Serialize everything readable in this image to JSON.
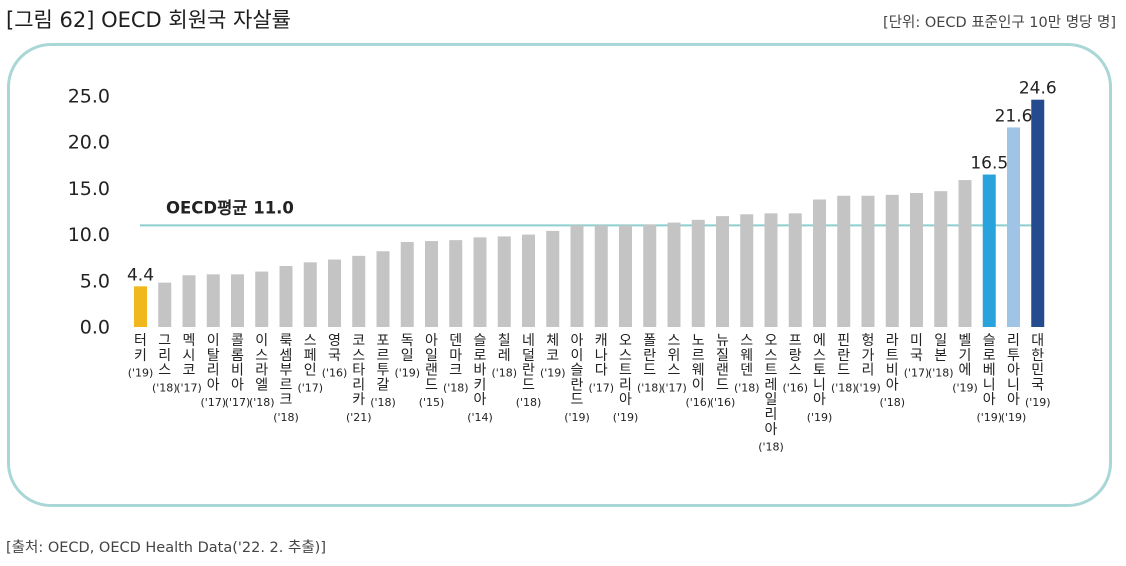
{
  "figure": {
    "title": "[그림 62] OECD 회원국 자살률",
    "unit": "[단위: OECD 표준인구 10만 명당 명]",
    "source": "[출처: OECD, OECD Health Data('22. 2. 추출)]"
  },
  "colors": {
    "default_bar": "#c4c4c4",
    "turkey_bar": "#f0b81d",
    "slovenia_bar": "#2aa3dc",
    "lithuania_bar": "#9fc4e6",
    "korea_bar": "#234b8e",
    "average_line": "#8dcece",
    "frame_border": "#a9d6d6"
  },
  "chart_data": {
    "type": "bar",
    "ylim": [
      0,
      25
    ],
    "yticks": [
      "0.0",
      "5.0",
      "10.0",
      "15.0",
      "20.0",
      "25.0"
    ],
    "grid": false,
    "reference_line": {
      "label": "OECD평균 11.0",
      "value": 11.0
    },
    "categories": [
      {
        "name": "터키",
        "year": "('19)",
        "value": 4.4,
        "label": "4.4",
        "color": "#f0b81d"
      },
      {
        "name": "그리스",
        "year": "('18)",
        "value": 4.8
      },
      {
        "name": "멕시코",
        "year": "('17)",
        "value": 5.6
      },
      {
        "name": "이탈리아",
        "year": "('17)",
        "value": 5.7
      },
      {
        "name": "콜롬비아",
        "year": "('17)",
        "value": 5.7
      },
      {
        "name": "이스라엘",
        "year": "('18)",
        "value": 6.0
      },
      {
        "name": "룩셈부르크",
        "year": "('18)",
        "value": 6.6
      },
      {
        "name": "스페인",
        "year": "('17)",
        "value": 7.0
      },
      {
        "name": "영국",
        "year": "('16)",
        "value": 7.3
      },
      {
        "name": "코스타리카",
        "year": "('21)",
        "value": 7.7
      },
      {
        "name": "포르투갈",
        "year": "('18)",
        "value": 8.2
      },
      {
        "name": "독일",
        "year": "('19)",
        "value": 9.2
      },
      {
        "name": "아일랜드",
        "year": "('15)",
        "value": 9.3
      },
      {
        "name": "덴마크",
        "year": "('18)",
        "value": 9.4
      },
      {
        "name": "슬로바키아",
        "year": "('14)",
        "value": 9.7
      },
      {
        "name": "칠레",
        "year": "('18)",
        "value": 9.8
      },
      {
        "name": "네덜란드",
        "year": "('18)",
        "value": 10.0
      },
      {
        "name": "체코",
        "year": "('19)",
        "value": 10.4
      },
      {
        "name": "아이슬란드",
        "year": "('19)",
        "value": 11.0
      },
      {
        "name": "캐나다",
        "year": "('17)",
        "value": 11.0
      },
      {
        "name": "오스트리아",
        "year": "('19)",
        "value": 11.0
      },
      {
        "name": "폴란드",
        "year": "('18)",
        "value": 11.1
      },
      {
        "name": "스위스",
        "year": "('17)",
        "value": 11.3
      },
      {
        "name": "노르웨이",
        "year": "('16)",
        "value": 11.6
      },
      {
        "name": "뉴질랜드",
        "year": "('16)",
        "value": 12.0
      },
      {
        "name": "스웨덴",
        "year": "('18)",
        "value": 12.2
      },
      {
        "name": "오스트레일리아",
        "year": "('18)",
        "value": 12.3
      },
      {
        "name": "프랑스",
        "year": "('16)",
        "value": 12.3
      },
      {
        "name": "에스토니아",
        "year": "('19)",
        "value": 13.8
      },
      {
        "name": "핀란드",
        "year": "('18)",
        "value": 14.2
      },
      {
        "name": "헝가리",
        "year": "('19)",
        "value": 14.2
      },
      {
        "name": "라트비아",
        "year": "('18)",
        "value": 14.3
      },
      {
        "name": "미국",
        "year": "('17)",
        "value": 14.5
      },
      {
        "name": "일본",
        "year": "('18)",
        "value": 14.7
      },
      {
        "name": "벨기에",
        "year": "('19)",
        "value": 15.9
      },
      {
        "name": "슬로베니아",
        "year": "('19)",
        "value": 16.5,
        "label": "16.5",
        "color": "#2aa3dc"
      },
      {
        "name": "리투아니아",
        "year": "('19)",
        "value": 21.6,
        "label": "21.6",
        "color": "#9fc4e6"
      },
      {
        "name": "대한민국",
        "year": "('19)",
        "value": 24.6,
        "label": "24.6",
        "color": "#234b8e"
      }
    ]
  }
}
